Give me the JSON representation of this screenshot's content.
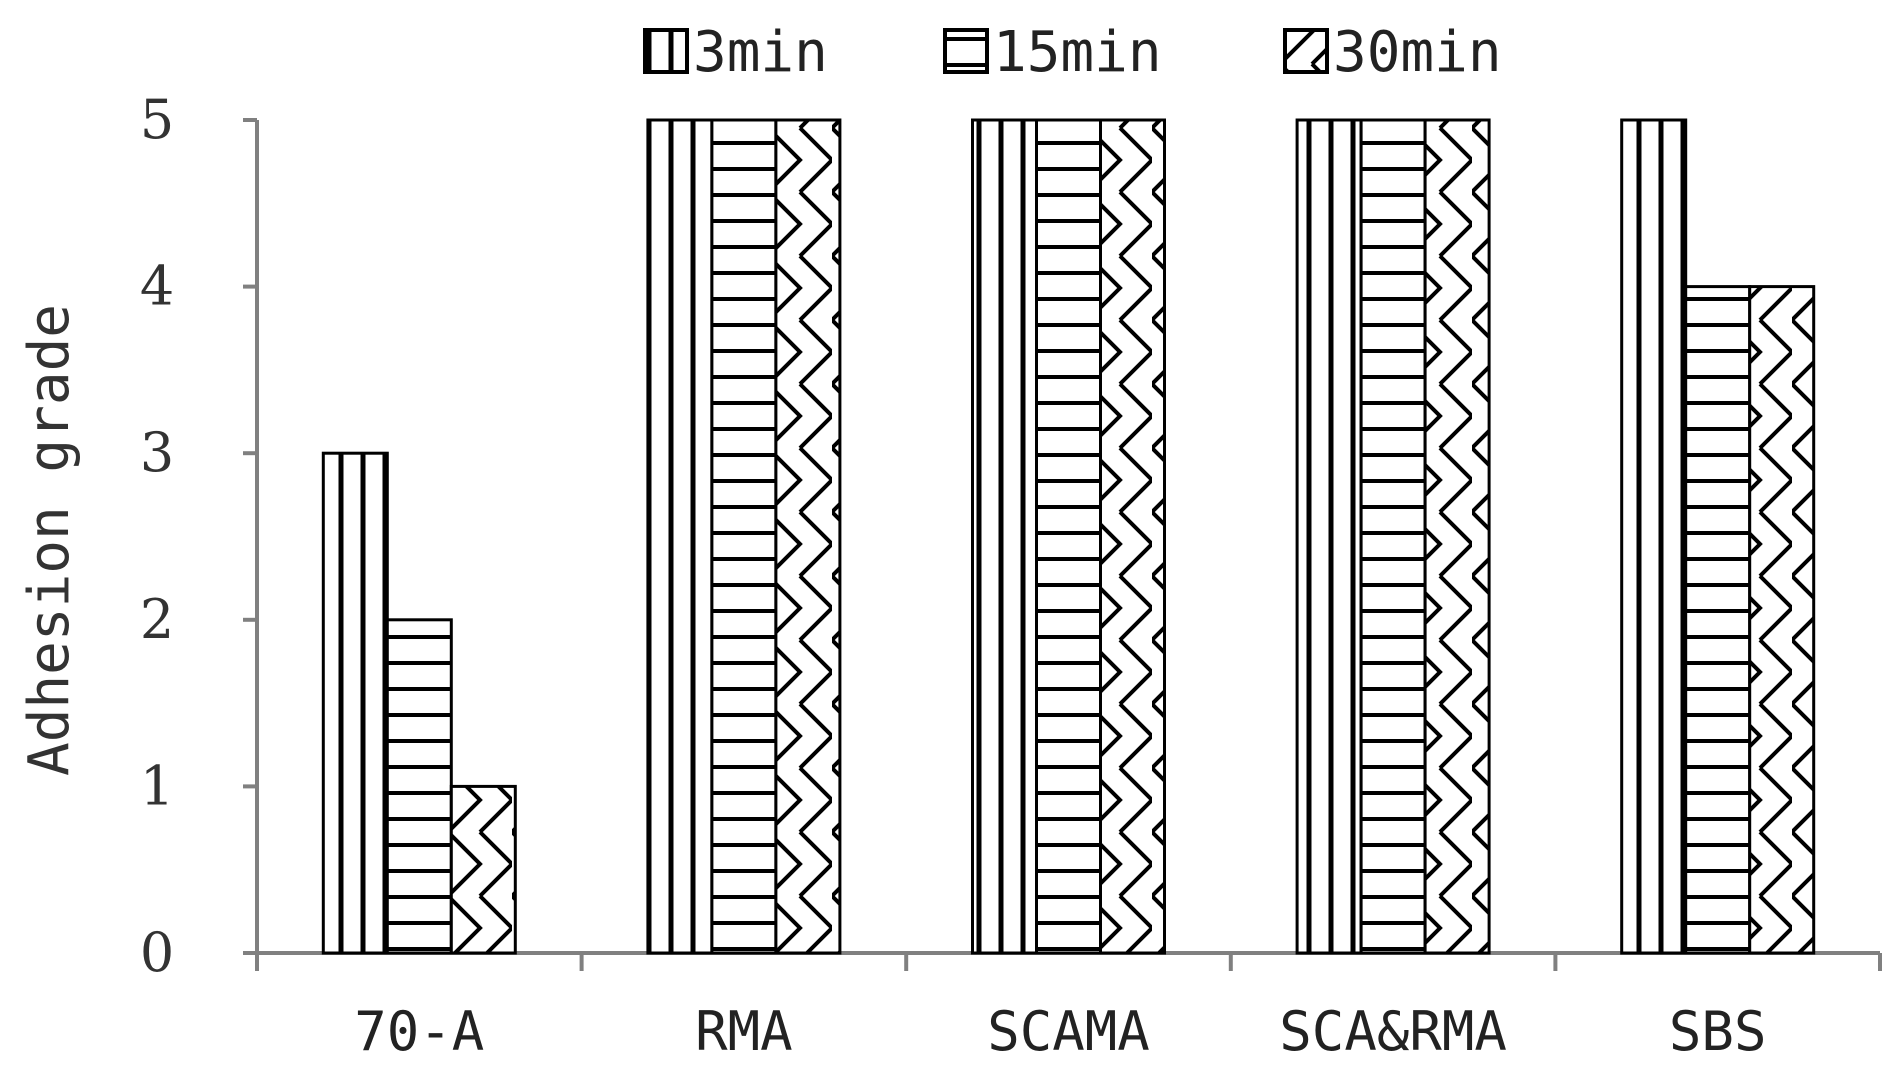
{
  "chart_data": {
    "type": "bar",
    "title": "",
    "xlabel": "",
    "ylabel": "Adhesion grade",
    "ylim": [
      0,
      5
    ],
    "yticks": [
      0,
      1,
      2,
      3,
      4,
      5
    ],
    "grid": false,
    "legend_position": "top",
    "categories": [
      "70-A",
      "RMA",
      "SCAMA",
      "SCA&RMA",
      "SBS"
    ],
    "series": [
      {
        "name": "3min",
        "pattern": "vertical-lines",
        "values": [
          3,
          5,
          5,
          5,
          5
        ]
      },
      {
        "name": "15min",
        "pattern": "horizontal-lines",
        "values": [
          2,
          5,
          5,
          5,
          4
        ]
      },
      {
        "name": "30min",
        "pattern": "zigzag-diagonal",
        "values": [
          1,
          5,
          5,
          5,
          4
        ]
      }
    ]
  },
  "colors": {
    "bar_stroke": "#000000",
    "bar_fill": "#ffffff",
    "axis": "#808080",
    "text": "#333333"
  }
}
